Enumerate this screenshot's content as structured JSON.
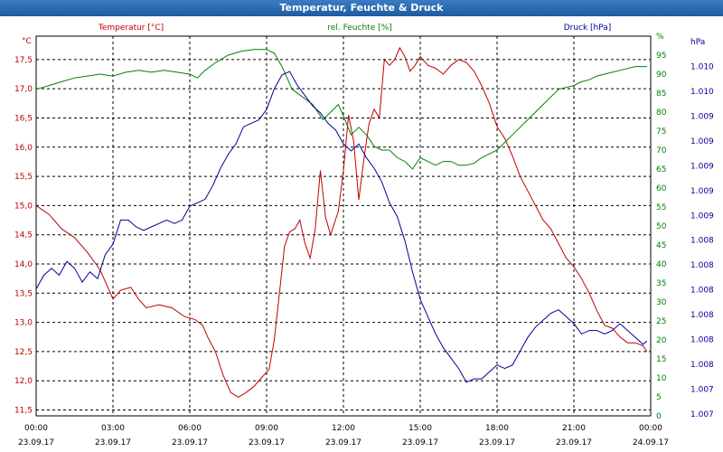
{
  "window": {
    "title": "Temperatur, Feuchte & Druck"
  },
  "colors": {
    "temperature": "#c00000",
    "humidity": "#008000",
    "pressure": "#000099",
    "titlebar": "#2b6cb0"
  },
  "chart_data": {
    "type": "line",
    "title": "Temperatur, Feuchte & Druck",
    "grid": true,
    "x_ticks": [
      {
        "time": "00:00",
        "date": "23.09.17"
      },
      {
        "time": "03:00",
        "date": "23.09.17"
      },
      {
        "time": "06:00",
        "date": "23.09.17"
      },
      {
        "time": "09:00",
        "date": "23.09.17"
      },
      {
        "time": "12:00",
        "date": "23.09.17"
      },
      {
        "time": "15:00",
        "date": "23.09.17"
      },
      {
        "time": "18:00",
        "date": "23.09.17"
      },
      {
        "time": "21:00",
        "date": "23.09.17"
      },
      {
        "time": "00:00",
        "date": "24.09.17"
      }
    ],
    "x_range_hours": [
      0,
      24
    ],
    "axes": {
      "temperature": {
        "label": "Temperatur [°C]",
        "unit": "°C",
        "range": [
          11.4,
          17.9
        ],
        "ticks": [
          "11,5",
          "12,0",
          "12,5",
          "13,0",
          "13,5",
          "14,0",
          "14,5",
          "15,0",
          "15,5",
          "16,0",
          "16,5",
          "17,0",
          "17,5"
        ],
        "tick_values": [
          11.5,
          12.0,
          12.5,
          13.0,
          13.5,
          14.0,
          14.5,
          15.0,
          15.5,
          16.0,
          16.5,
          17.0,
          17.5
        ]
      },
      "humidity": {
        "label": "rel. Feuchte [%]",
        "unit": "%",
        "range": [
          0,
          100
        ],
        "ticks": [
          "0",
          "5",
          "10",
          "15",
          "20",
          "25",
          "30",
          "35",
          "40",
          "45",
          "50",
          "55",
          "60",
          "65",
          "70",
          "75",
          "80",
          "85",
          "90",
          "95",
          "%"
        ],
        "tick_values": [
          0,
          5,
          10,
          15,
          20,
          25,
          30,
          35,
          40,
          45,
          50,
          55,
          60,
          65,
          70,
          75,
          80,
          85,
          90,
          95,
          100
        ]
      },
      "pressure": {
        "label": "Druck [hPa]",
        "unit": "hPa",
        "ticks": [
          "1.007",
          "1.007",
          "1.008",
          "1.008",
          "1.008",
          "1.008",
          "1.008",
          "1.008",
          "1.009",
          "1.009",
          "1.009",
          "1.009",
          "1.009",
          "1.010",
          "1.010",
          "hPa"
        ]
      }
    },
    "series": [
      {
        "name": "Temperatur [°C]",
        "axis": "temperature",
        "color": "#c00000",
        "points": [
          [
            0,
            15.0
          ],
          [
            0.5,
            14.85
          ],
          [
            1,
            14.6
          ],
          [
            1.5,
            14.45
          ],
          [
            2,
            14.2
          ],
          [
            2.5,
            13.9
          ],
          [
            3,
            13.4
          ],
          [
            3.3,
            13.55
          ],
          [
            3.7,
            13.6
          ],
          [
            4,
            13.4
          ],
          [
            4.3,
            13.25
          ],
          [
            4.8,
            13.3
          ],
          [
            5.3,
            13.25
          ],
          [
            5.8,
            13.1
          ],
          [
            6.2,
            13.05
          ],
          [
            6.5,
            12.95
          ],
          [
            6.7,
            12.75
          ],
          [
            7,
            12.5
          ],
          [
            7.3,
            12.1
          ],
          [
            7.6,
            11.8
          ],
          [
            7.9,
            11.72
          ],
          [
            8.2,
            11.8
          ],
          [
            8.5,
            11.9
          ],
          [
            8.8,
            12.05
          ],
          [
            9.1,
            12.2
          ],
          [
            9.3,
            12.7
          ],
          [
            9.5,
            13.5
          ],
          [
            9.7,
            14.3
          ],
          [
            9.9,
            14.55
          ],
          [
            10.1,
            14.6
          ],
          [
            10.3,
            14.75
          ],
          [
            10.5,
            14.35
          ],
          [
            10.7,
            14.1
          ],
          [
            10.9,
            14.6
          ],
          [
            11.1,
            15.6
          ],
          [
            11.3,
            14.8
          ],
          [
            11.5,
            14.5
          ],
          [
            11.8,
            14.9
          ],
          [
            12.0,
            15.6
          ],
          [
            12.2,
            16.55
          ],
          [
            12.4,
            16.1
          ],
          [
            12.6,
            15.1
          ],
          [
            12.8,
            15.8
          ],
          [
            13.0,
            16.4
          ],
          [
            13.2,
            16.65
          ],
          [
            13.4,
            16.5
          ],
          [
            13.6,
            17.5
          ],
          [
            13.8,
            17.4
          ],
          [
            14.0,
            17.5
          ],
          [
            14.2,
            17.7
          ],
          [
            14.4,
            17.55
          ],
          [
            14.6,
            17.3
          ],
          [
            14.8,
            17.4
          ],
          [
            15.0,
            17.55
          ],
          [
            15.3,
            17.4
          ],
          [
            15.6,
            17.35
          ],
          [
            15.9,
            17.25
          ],
          [
            16.2,
            17.4
          ],
          [
            16.5,
            17.5
          ],
          [
            16.8,
            17.45
          ],
          [
            17.1,
            17.3
          ],
          [
            17.4,
            17.05
          ],
          [
            17.7,
            16.75
          ],
          [
            18.0,
            16.35
          ],
          [
            18.3,
            16.15
          ],
          [
            18.6,
            15.85
          ],
          [
            18.9,
            15.5
          ],
          [
            19.2,
            15.25
          ],
          [
            19.5,
            15.0
          ],
          [
            19.8,
            14.75
          ],
          [
            20.1,
            14.6
          ],
          [
            20.4,
            14.35
          ],
          [
            20.7,
            14.1
          ],
          [
            21.0,
            13.95
          ],
          [
            21.3,
            13.75
          ],
          [
            21.6,
            13.5
          ],
          [
            21.9,
            13.2
          ],
          [
            22.2,
            12.95
          ],
          [
            22.5,
            12.9
          ],
          [
            22.8,
            12.75
          ],
          [
            23.1,
            12.65
          ],
          [
            23.4,
            12.65
          ],
          [
            23.7,
            12.6
          ],
          [
            23.85,
            12.5
          ]
        ]
      },
      {
        "name": "rel. Feuchte [%]",
        "axis": "humidity",
        "color": "#008000",
        "points": [
          [
            0,
            86
          ],
          [
            0.5,
            87
          ],
          [
            1,
            88
          ],
          [
            1.5,
            89
          ],
          [
            2,
            89.5
          ],
          [
            2.5,
            90
          ],
          [
            3,
            89.5
          ],
          [
            3.5,
            90.5
          ],
          [
            4,
            91
          ],
          [
            4.5,
            90.5
          ],
          [
            5,
            91
          ],
          [
            5.5,
            90.5
          ],
          [
            6,
            90
          ],
          [
            6.3,
            89
          ],
          [
            6.6,
            91
          ],
          [
            7,
            93
          ],
          [
            7.5,
            95
          ],
          [
            8,
            96
          ],
          [
            8.5,
            96.5
          ],
          [
            9,
            96.5
          ],
          [
            9.3,
            95.5
          ],
          [
            9.6,
            92
          ],
          [
            10,
            86
          ],
          [
            10.4,
            84
          ],
          [
            10.8,
            82
          ],
          [
            11.2,
            78
          ],
          [
            11.5,
            80
          ],
          [
            11.8,
            82
          ],
          [
            12.0,
            79
          ],
          [
            12.3,
            74
          ],
          [
            12.6,
            76
          ],
          [
            12.9,
            74
          ],
          [
            13.2,
            71
          ],
          [
            13.5,
            70
          ],
          [
            13.8,
            70
          ],
          [
            14.1,
            68
          ],
          [
            14.4,
            67
          ],
          [
            14.7,
            65
          ],
          [
            15.0,
            68
          ],
          [
            15.3,
            67
          ],
          [
            15.6,
            66
          ],
          [
            15.9,
            67
          ],
          [
            16.2,
            67
          ],
          [
            16.5,
            66
          ],
          [
            16.8,
            66
          ],
          [
            17.1,
            66.5
          ],
          [
            17.4,
            68
          ],
          [
            17.7,
            69
          ],
          [
            18.0,
            70
          ],
          [
            18.3,
            72
          ],
          [
            18.6,
            74
          ],
          [
            18.9,
            76
          ],
          [
            19.2,
            78
          ],
          [
            19.5,
            80
          ],
          [
            19.8,
            82
          ],
          [
            20.1,
            84
          ],
          [
            20.4,
            86
          ],
          [
            20.7,
            86.5
          ],
          [
            21.0,
            87
          ],
          [
            21.3,
            88
          ],
          [
            21.6,
            88.5
          ],
          [
            21.9,
            89.5
          ],
          [
            22.2,
            90
          ],
          [
            22.5,
            90.5
          ],
          [
            22.8,
            91
          ],
          [
            23.1,
            91.5
          ],
          [
            23.4,
            92
          ],
          [
            23.7,
            92
          ],
          [
            23.85,
            92
          ]
        ]
      },
      {
        "name": "Druck [hPa]",
        "axis": "pressure",
        "color": "#000099",
        "scale": "relative",
        "points": [
          [
            0,
            0.32
          ],
          [
            0.3,
            0.36
          ],
          [
            0.6,
            0.38
          ],
          [
            0.9,
            0.36
          ],
          [
            1.2,
            0.4
          ],
          [
            1.5,
            0.38
          ],
          [
            1.8,
            0.34
          ],
          [
            2.1,
            0.37
          ],
          [
            2.4,
            0.35
          ],
          [
            2.7,
            0.42
          ],
          [
            3.0,
            0.45
          ],
          [
            3.3,
            0.52
          ],
          [
            3.6,
            0.52
          ],
          [
            3.9,
            0.5
          ],
          [
            4.2,
            0.49
          ],
          [
            4.5,
            0.5
          ],
          [
            4.8,
            0.51
          ],
          [
            5.1,
            0.52
          ],
          [
            5.4,
            0.51
          ],
          [
            5.7,
            0.52
          ],
          [
            6.0,
            0.56
          ],
          [
            6.3,
            0.57
          ],
          [
            6.6,
            0.58
          ],
          [
            6.9,
            0.62
          ],
          [
            7.2,
            0.67
          ],
          [
            7.5,
            0.71
          ],
          [
            7.8,
            0.74
          ],
          [
            8.1,
            0.79
          ],
          [
            8.4,
            0.8
          ],
          [
            8.7,
            0.81
          ],
          [
            9.0,
            0.84
          ],
          [
            9.3,
            0.9
          ],
          [
            9.6,
            0.94
          ],
          [
            9.9,
            0.95
          ],
          [
            10.2,
            0.91
          ],
          [
            10.5,
            0.88
          ],
          [
            10.8,
            0.85
          ],
          [
            11.1,
            0.83
          ],
          [
            11.4,
            0.8
          ],
          [
            11.7,
            0.78
          ],
          [
            12.0,
            0.74
          ],
          [
            12.3,
            0.72
          ],
          [
            12.6,
            0.74
          ],
          [
            12.9,
            0.7
          ],
          [
            13.2,
            0.67
          ],
          [
            13.5,
            0.63
          ],
          [
            13.8,
            0.57
          ],
          [
            14.1,
            0.53
          ],
          [
            14.4,
            0.46
          ],
          [
            14.7,
            0.37
          ],
          [
            15.0,
            0.29
          ],
          [
            15.3,
            0.24
          ],
          [
            15.6,
            0.19
          ],
          [
            15.9,
            0.15
          ],
          [
            16.2,
            0.12
          ],
          [
            16.5,
            0.09
          ],
          [
            16.8,
            0.05
          ],
          [
            17.1,
            0.06
          ],
          [
            17.4,
            0.06
          ],
          [
            17.7,
            0.08
          ],
          [
            18.0,
            0.1
          ],
          [
            18.3,
            0.09
          ],
          [
            18.6,
            0.1
          ],
          [
            18.9,
            0.14
          ],
          [
            19.2,
            0.18
          ],
          [
            19.5,
            0.21
          ],
          [
            19.8,
            0.23
          ],
          [
            20.1,
            0.25
          ],
          [
            20.4,
            0.26
          ],
          [
            20.7,
            0.24
          ],
          [
            21.0,
            0.22
          ],
          [
            21.3,
            0.19
          ],
          [
            21.6,
            0.2
          ],
          [
            21.9,
            0.2
          ],
          [
            22.2,
            0.19
          ],
          [
            22.5,
            0.2
          ],
          [
            22.8,
            0.22
          ],
          [
            23.1,
            0.2
          ],
          [
            23.4,
            0.18
          ],
          [
            23.7,
            0.16
          ],
          [
            23.85,
            0.17
          ]
        ]
      }
    ]
  }
}
